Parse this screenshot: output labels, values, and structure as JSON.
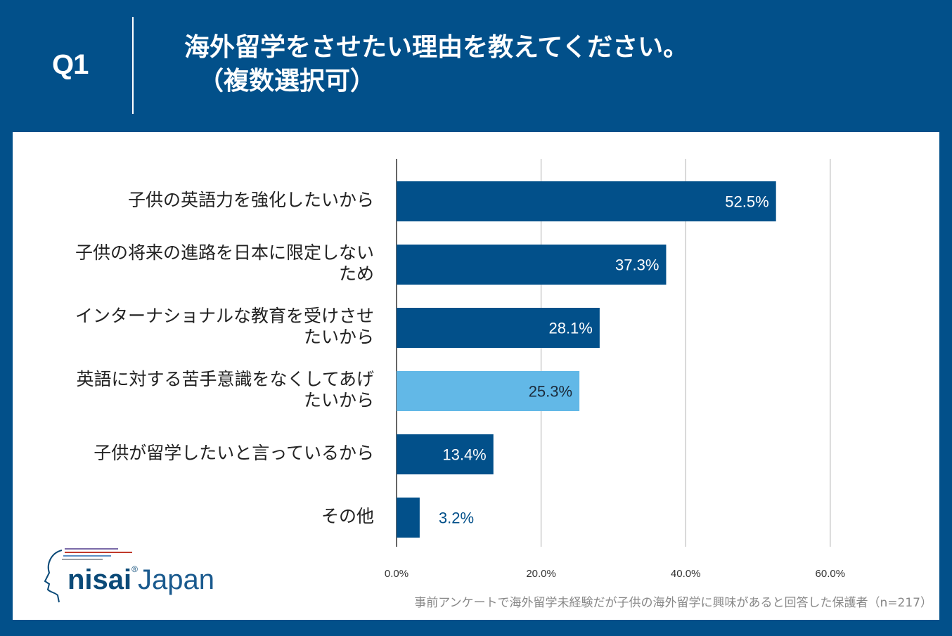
{
  "header": {
    "question_number": "Q1",
    "title_line1": "海外留学をさせたい理由を教えてください。",
    "title_line2": "（複数選択可）"
  },
  "colors": {
    "background": "#02508a",
    "bar": "#02508a",
    "bar_highlight": "#62b8e7",
    "grid": "#cccccc"
  },
  "chart_data": {
    "type": "bar",
    "orientation": "horizontal",
    "title": "海外留学をさせたい理由を教えてください。（複数選択可）",
    "categories": [
      [
        "子供の英語力を強化したいから"
      ],
      [
        "子供の将来の進路を日本に限定しない",
        "ため"
      ],
      [
        "インターナショナルな教育を受けさせ",
        "たいから"
      ],
      [
        "英語に対する苦手意識をなくしてあげ",
        "たいから"
      ],
      [
        "子供が留学したいと言っているから"
      ],
      [
        "その他"
      ]
    ],
    "values": [
      52.5,
      37.3,
      28.1,
      25.3,
      13.4,
      3.2
    ],
    "value_labels": [
      "52.5%",
      "37.3%",
      "28.1%",
      "25.3%",
      "13.4%",
      "3.2%"
    ],
    "highlight_index": 3,
    "xlim": [
      0,
      60
    ],
    "xticks": [
      0,
      20,
      40,
      60
    ],
    "xtick_labels": [
      "0.0%",
      "20.0%",
      "40.0%",
      "60.0%"
    ],
    "grid": true,
    "xlabel": "",
    "ylabel": ""
  },
  "footnote": "事前アンケートで海外留学未経験だが子供の海外留学に興味があると回答した保護者（n=217）",
  "logo": {
    "brand": "nisai",
    "brand2": "Japan",
    "registered": "®"
  }
}
